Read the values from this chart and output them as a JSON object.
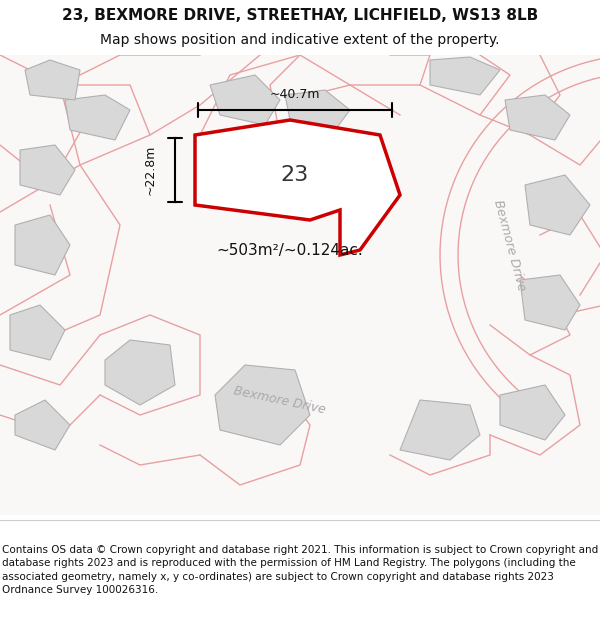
{
  "title_line1": "23, BEXMORE DRIVE, STREETHAY, LICHFIELD, WS13 8LB",
  "title_line2": "Map shows position and indicative extent of the property.",
  "footer_text": "Contains OS data © Crown copyright and database right 2021. This information is subject to Crown copyright and database rights 2023 and is reproduced with the permission of HM Land Registry. The polygons (including the associated geometry, namely x, y co-ordinates) are subject to Crown copyright and database rights 2023 Ordnance Survey 100026316.",
  "area_label": "~503m²/~0.124ac.",
  "width_label": "~40.7m",
  "height_label": "~22.8m",
  "plot_number": "23",
  "road_label_top": "Bexmore Drive",
  "road_label_right": "Bexmore Drive",
  "bg_color": "#f5f0f0",
  "map_bg": "#faf7f7",
  "plot_fill": "#ffffff",
  "plot_edge": "#cc0000",
  "building_fill": "#d8d8d8",
  "road_line_color": "#e8a0a0",
  "dim_line_color": "#000000",
  "title_fontsize": 11,
  "subtitle_fontsize": 10,
  "footer_fontsize": 7.5
}
